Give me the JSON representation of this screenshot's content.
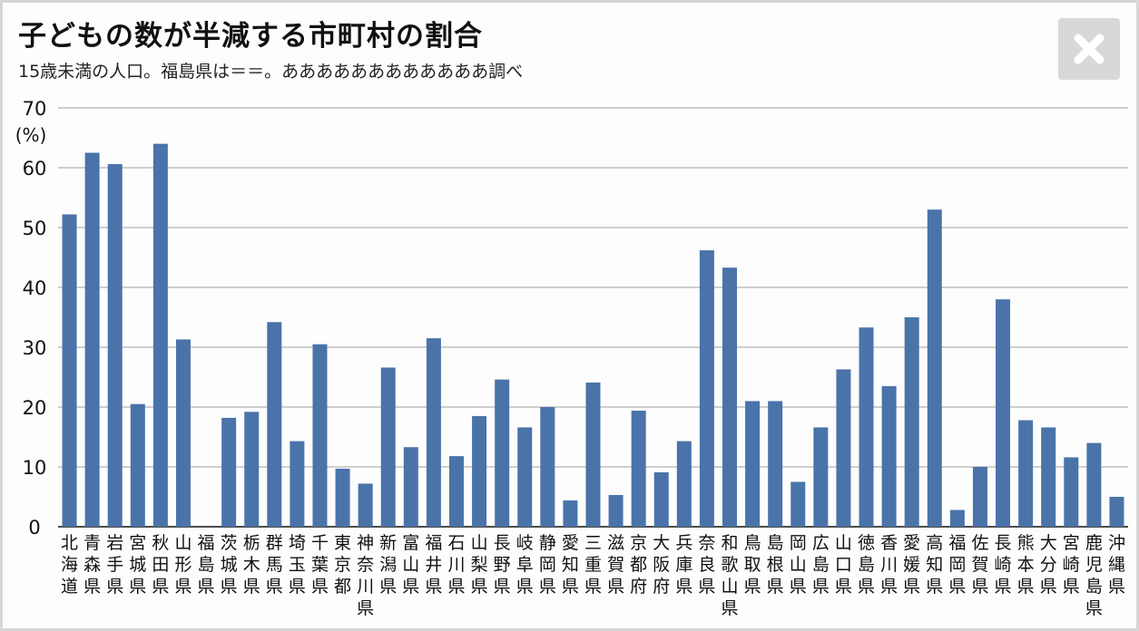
{
  "header": {
    "title": "子どもの数が半減する市町村の割合",
    "subtitle": "15歳未満の人口。福島県は＝＝。ああああああああああああ調べ"
  },
  "controls": {
    "close_icon": "close-icon"
  },
  "colors": {
    "bar": "#4a73a9",
    "grid": "#9e9e9e",
    "axis": "#111111",
    "close_bg": "#d8d8d8",
    "close_fg": "#ffffff"
  },
  "chart_data": {
    "type": "bar",
    "ylabel": "(%)",
    "ylim": [
      0,
      70
    ],
    "yticks": [
      0,
      10,
      20,
      30,
      40,
      50,
      60,
      70
    ],
    "grid": true,
    "categories": [
      "北海道",
      "青森県",
      "岩手県",
      "宮城県",
      "秋田県",
      "山形県",
      "福島県",
      "茨城県",
      "栃木県",
      "群馬県",
      "埼玉県",
      "千葉県",
      "東京都",
      "神奈川県",
      "新潟県",
      "富山県",
      "福井県",
      "石川県",
      "山梨県",
      "長野県",
      "岐阜県",
      "静岡県",
      "愛知県",
      "三重県",
      "滋賀県",
      "京都府",
      "大阪府",
      "兵庫県",
      "奈良県",
      "和歌山県",
      "鳥取県",
      "島根県",
      "岡山県",
      "広島県",
      "山口県",
      "徳島県",
      "香川県",
      "愛媛県",
      "高知県",
      "福岡県",
      "佐賀県",
      "長崎県",
      "熊本県",
      "大分県",
      "宮崎県",
      "鹿児島県",
      "沖縄県"
    ],
    "values": [
      52.2,
      62.5,
      60.6,
      20.5,
      64.0,
      31.3,
      null,
      18.2,
      19.2,
      34.2,
      14.3,
      30.5,
      9.7,
      7.2,
      26.6,
      13.3,
      31.5,
      11.8,
      18.5,
      24.6,
      16.6,
      20.0,
      4.4,
      24.1,
      5.3,
      19.4,
      9.1,
      14.3,
      46.2,
      43.3,
      21.0,
      21.0,
      7.5,
      16.6,
      26.3,
      33.3,
      23.5,
      35.0,
      53.0,
      2.8,
      10.0,
      38.0,
      17.8,
      16.6,
      11.6,
      14.0,
      5.0
    ]
  }
}
